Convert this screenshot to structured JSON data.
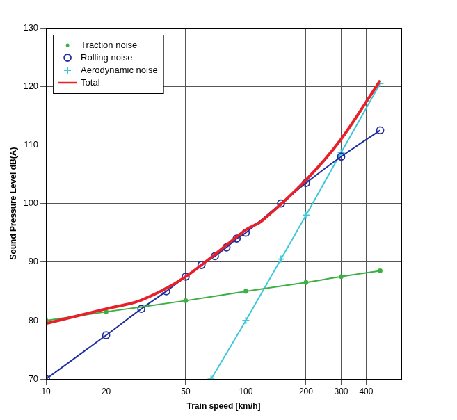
{
  "chart_data": {
    "type": "line",
    "x_label": "Train speed [km/h]",
    "y_label": "Sound Pressure Level dB(A)",
    "log": "x",
    "grid": true,
    "legend": "upper left",
    "xlim": [
      10,
      600
    ],
    "xticks": [
      10,
      20,
      50,
      100,
      200,
      300,
      400
    ],
    "ylim": [
      70,
      130
    ],
    "yticks": [
      70,
      80,
      90,
      100,
      110,
      120,
      130
    ],
    "series": [
      {
        "name": "Traction noise",
        "color": "#3cb043",
        "marker": "dot",
        "line_style": "solid",
        "x": [
          10,
          20,
          50,
          100,
          200,
          300,
          470
        ],
        "values": [
          80,
          81.5,
          83.4,
          85,
          86.5,
          87.5,
          88.5
        ]
      },
      {
        "name": "Rolling noise",
        "color": "#1f2f9e",
        "marker": "ring",
        "line_style": "solid",
        "x": [
          10,
          20,
          30,
          40,
          50,
          60,
          70,
          80,
          90,
          100,
          150,
          200,
          300,
          470
        ],
        "values": [
          70,
          77.5,
          82,
          85,
          87.5,
          89.5,
          91,
          92.5,
          94,
          95,
          100,
          103.5,
          108,
          112.5
        ]
      },
      {
        "name": "Aerodynamic noise",
        "color": "#3cc8d8",
        "marker": "cross",
        "line_style": "solid",
        "x": [
          67,
          100,
          150,
          200,
          300,
          470
        ],
        "values": [
          70,
          80,
          90.5,
          98,
          108.7,
          120.5
        ]
      },
      {
        "name": "Total",
        "color": "#e8202a",
        "marker": "none",
        "line_style": "solid",
        "x": [
          10,
          20,
          30,
          50,
          100,
          120,
          200,
          300,
          470
        ],
        "values": [
          79.5,
          82,
          83.5,
          87.5,
          95.5,
          97,
          104,
          111,
          121
        ]
      }
    ]
  }
}
